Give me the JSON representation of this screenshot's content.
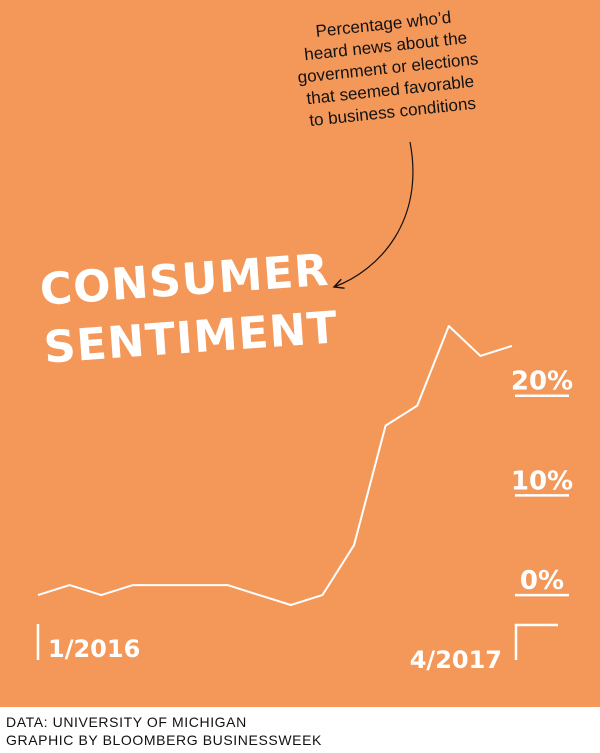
{
  "annotation": "Percentage who’d\nheard news about the\ngovernment or elections\nthat seemed favorable\nto business conditions",
  "title": "CONSUMER\nSENTIMENT",
  "footer": {
    "source": "DATA: UNIVERSITY OF MICHIGAN",
    "credit": "GRAPHIC BY BLOOMBERG BUSINESSWEEK"
  },
  "colors": {
    "background": "#f4985a",
    "line": "#ffffff",
    "text": "#111111"
  },
  "chart_data": {
    "type": "line",
    "title": "CONSUMER SENTIMENT",
    "x": [
      "1/2016",
      "2/2016",
      "3/2016",
      "4/2016",
      "5/2016",
      "6/2016",
      "7/2016",
      "8/2016",
      "9/2016",
      "10/2016",
      "11/2016",
      "12/2016",
      "1/2017",
      "2/2017",
      "3/2017",
      "4/2017"
    ],
    "values": [
      0,
      1,
      0,
      1,
      1,
      1,
      1,
      0,
      -1,
      0,
      5,
      17,
      19,
      27,
      24,
      25
    ],
    "x_tick_labels": [
      "1/2016",
      "4/2017"
    ],
    "y_tick_labels": [
      "0%",
      "10%",
      "20%"
    ],
    "y_ticks": [
      0,
      10,
      20
    ],
    "ylim": [
      -2,
      28
    ],
    "grid": false,
    "legend": "none"
  }
}
